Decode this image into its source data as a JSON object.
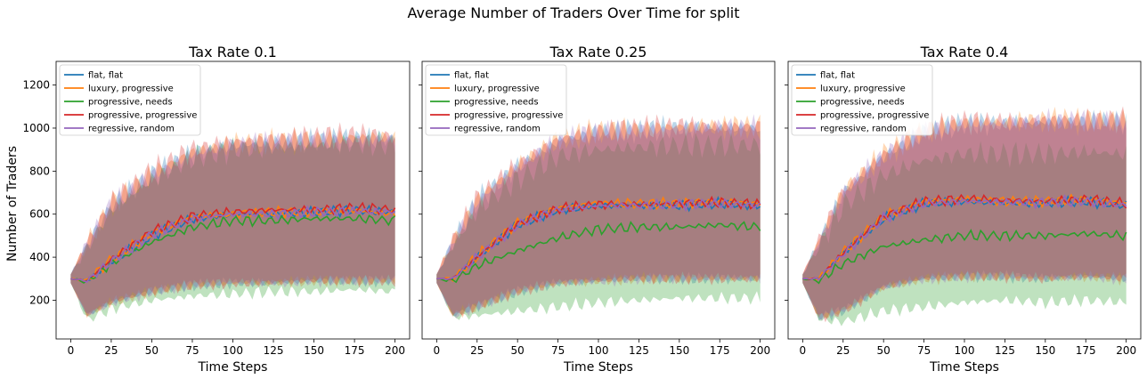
{
  "figure_title": "Average Number of Traders Over Time for split",
  "ylabel": "Number of Traders",
  "xlabel": "Time Steps",
  "colors": {
    "flat, flat": "#1f77b4",
    "luxury, progressive": "#ff7f0e",
    "progressive, needs": "#2ca02c",
    "progressive, progressive": "#d62728",
    "regressive, random": "#9467bd"
  },
  "chart_data": [
    {
      "type": "line",
      "title": "Tax Rate 0.1",
      "xlabel": "Time Steps",
      "ylabel": "Number of Traders",
      "xlim": [
        -9,
        209
      ],
      "ylim": [
        20,
        1310
      ],
      "xticks": [
        0,
        25,
        50,
        75,
        100,
        125,
        150,
        175,
        200
      ],
      "yticks": [
        200,
        400,
        600,
        800,
        1000,
        1200
      ],
      "legend": "upper-left",
      "x": [
        0,
        10,
        25,
        50,
        75,
        100,
        125,
        150,
        175,
        200
      ],
      "series": [
        {
          "name": "flat, flat",
          "values": [
            300,
            290,
            380,
            500,
            580,
            600,
            600,
            610,
            620,
            610
          ],
          "band_low": [
            280,
            130,
            190,
            240,
            270,
            280,
            280,
            290,
            290,
            290
          ],
          "band_high": [
            320,
            460,
            640,
            780,
            880,
            920,
            930,
            940,
            950,
            950
          ]
        },
        {
          "name": "luxury, progressive",
          "values": [
            300,
            290,
            390,
            510,
            590,
            600,
            610,
            610,
            620,
            600
          ],
          "band_low": [
            280,
            130,
            190,
            240,
            270,
            280,
            280,
            290,
            290,
            290
          ],
          "band_high": [
            320,
            460,
            650,
            790,
            890,
            930,
            940,
            950,
            960,
            960
          ]
        },
        {
          "name": "progressive, needs",
          "values": [
            300,
            285,
            370,
            470,
            540,
            570,
            570,
            580,
            580,
            570
          ],
          "band_low": [
            280,
            110,
            160,
            200,
            220,
            230,
            240,
            240,
            250,
            240
          ],
          "band_high": [
            320,
            440,
            620,
            760,
            860,
            900,
            910,
            920,
            930,
            920
          ]
        },
        {
          "name": "progressive, progressive",
          "values": [
            300,
            290,
            390,
            520,
            590,
            610,
            620,
            620,
            630,
            620
          ],
          "band_low": [
            280,
            130,
            190,
            240,
            270,
            280,
            280,
            290,
            290,
            290
          ],
          "band_high": [
            320,
            470,
            660,
            800,
            900,
            940,
            950,
            960,
            970,
            960
          ]
        },
        {
          "name": "regressive, random",
          "values": [
            300,
            290,
            380,
            505,
            580,
            600,
            600,
            610,
            615,
            610
          ],
          "band_low": [
            280,
            130,
            190,
            240,
            270,
            280,
            280,
            290,
            290,
            290
          ],
          "band_high": [
            320,
            460,
            640,
            780,
            880,
            920,
            930,
            940,
            950,
            950
          ]
        }
      ]
    },
    {
      "type": "line",
      "title": "Tax Rate 0.25",
      "xlabel": "Time Steps",
      "ylabel": "",
      "xlim": [
        -9,
        209
      ],
      "ylim": [
        20,
        1310
      ],
      "xticks": [
        0,
        25,
        50,
        75,
        100,
        125,
        150,
        175,
        200
      ],
      "yticks": [
        200,
        400,
        600,
        800,
        1000,
        1200
      ],
      "legend": "upper-left",
      "x": [
        0,
        10,
        25,
        50,
        75,
        100,
        125,
        150,
        175,
        200
      ],
      "series": [
        {
          "name": "flat, flat",
          "values": [
            300,
            300,
            400,
            550,
            620,
            640,
            640,
            640,
            650,
            640
          ],
          "band_low": [
            280,
            130,
            170,
            240,
            280,
            290,
            300,
            300,
            300,
            300
          ],
          "band_high": [
            320,
            470,
            660,
            820,
            940,
            980,
            990,
            1000,
            1000,
            1000
          ]
        },
        {
          "name": "luxury, progressive",
          "values": [
            300,
            300,
            405,
            560,
            630,
            650,
            650,
            650,
            660,
            650
          ],
          "band_low": [
            280,
            130,
            170,
            240,
            280,
            290,
            300,
            300,
            300,
            300
          ],
          "band_high": [
            320,
            480,
            670,
            830,
            950,
            990,
            1000,
            1010,
            1010,
            1010
          ]
        },
        {
          "name": "progressive, needs",
          "values": [
            300,
            290,
            360,
            430,
            490,
            530,
            540,
            540,
            550,
            540
          ],
          "band_low": [
            280,
            120,
            130,
            150,
            170,
            190,
            200,
            210,
            210,
            210
          ],
          "band_high": [
            320,
            450,
            620,
            760,
            870,
            900,
            910,
            920,
            920,
            920
          ]
        },
        {
          "name": "progressive, progressive",
          "values": [
            300,
            300,
            400,
            555,
            625,
            645,
            645,
            650,
            655,
            645
          ],
          "band_low": [
            280,
            130,
            170,
            240,
            280,
            290,
            300,
            300,
            300,
            300
          ],
          "band_high": [
            320,
            480,
            670,
            830,
            950,
            990,
            1000,
            1010,
            1010,
            1010
          ]
        },
        {
          "name": "regressive, random",
          "values": [
            300,
            300,
            400,
            550,
            620,
            640,
            640,
            645,
            650,
            640
          ],
          "band_low": [
            280,
            130,
            170,
            240,
            280,
            290,
            300,
            300,
            300,
            300
          ],
          "band_high": [
            320,
            470,
            660,
            820,
            940,
            980,
            990,
            1000,
            1000,
            1000
          ]
        }
      ]
    },
    {
      "type": "line",
      "title": "Tax Rate 0.4",
      "xlabel": "Time Steps",
      "ylabel": "",
      "xlim": [
        -9,
        209
      ],
      "ylim": [
        20,
        1310
      ],
      "xticks": [
        0,
        25,
        50,
        75,
        100,
        125,
        150,
        175,
        200
      ],
      "yticks": [
        200,
        400,
        600,
        800,
        1000,
        1200
      ],
      "legend": "upper-left",
      "x": [
        0,
        10,
        25,
        50,
        75,
        100,
        125,
        150,
        175,
        200
      ],
      "series": [
        {
          "name": "flat, flat",
          "values": [
            300,
            300,
            420,
            580,
            650,
            660,
            650,
            650,
            660,
            640
          ],
          "band_low": [
            280,
            120,
            150,
            260,
            300,
            310,
            310,
            300,
            310,
            300
          ],
          "band_high": [
            320,
            470,
            700,
            870,
            980,
            1020,
            1020,
            1030,
            1030,
            1030
          ]
        },
        {
          "name": "luxury, progressive",
          "values": [
            300,
            300,
            425,
            590,
            660,
            670,
            660,
            660,
            670,
            650
          ],
          "band_low": [
            280,
            120,
            150,
            260,
            300,
            310,
            310,
            300,
            310,
            300
          ],
          "band_high": [
            320,
            480,
            710,
            880,
            990,
            1030,
            1030,
            1040,
            1040,
            1040
          ]
        },
        {
          "name": "progressive, needs",
          "values": [
            300,
            290,
            370,
            450,
            480,
            500,
            500,
            500,
            510,
            500
          ],
          "band_low": [
            280,
            110,
            100,
            150,
            170,
            190,
            200,
            190,
            200,
            190
          ],
          "band_high": [
            320,
            450,
            640,
            780,
            850,
            880,
            880,
            880,
            890,
            880
          ]
        },
        {
          "name": "progressive, progressive",
          "values": [
            300,
            300,
            420,
            590,
            660,
            670,
            665,
            660,
            670,
            650
          ],
          "band_low": [
            280,
            120,
            150,
            260,
            300,
            310,
            310,
            300,
            310,
            300
          ],
          "band_high": [
            320,
            480,
            710,
            880,
            990,
            1030,
            1030,
            1040,
            1040,
            1040
          ]
        },
        {
          "name": "regressive, random",
          "values": [
            300,
            300,
            415,
            580,
            650,
            660,
            655,
            655,
            660,
            640
          ],
          "band_low": [
            280,
            120,
            150,
            260,
            300,
            310,
            310,
            300,
            310,
            300
          ],
          "band_high": [
            320,
            470,
            700,
            870,
            980,
            1020,
            1020,
            1030,
            1030,
            1030
          ]
        }
      ]
    }
  ]
}
